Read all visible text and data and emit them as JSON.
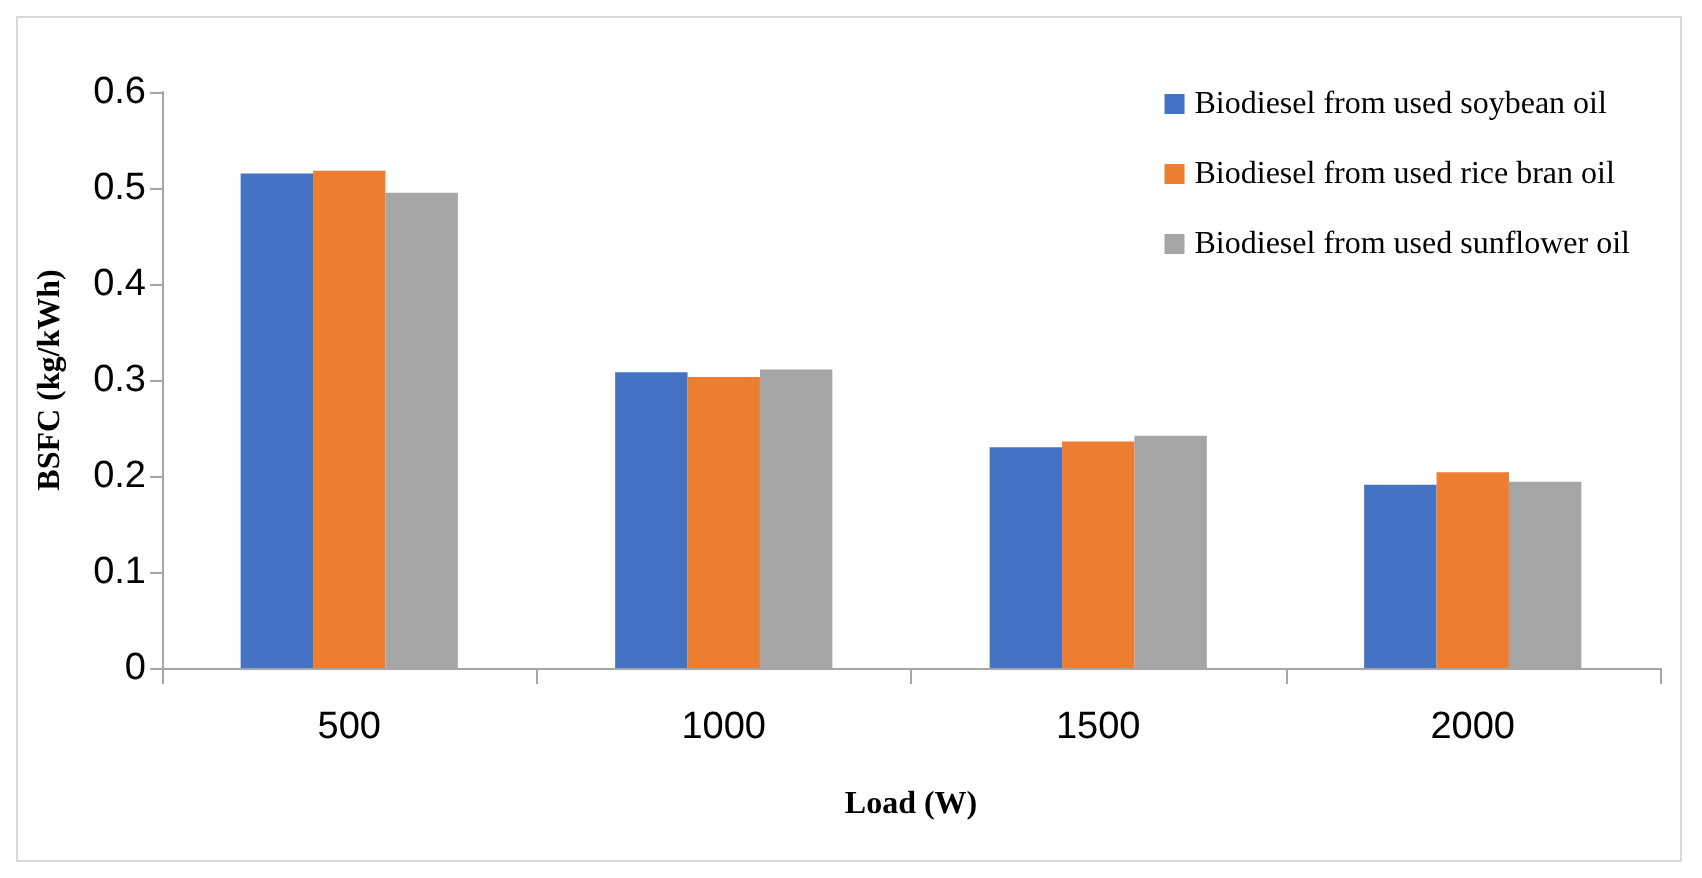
{
  "chart_data": {
    "type": "bar",
    "xlabel": "Load (W)",
    "ylabel": "BSFC (kg/kWh)",
    "categories": [
      "500",
      "1000",
      "1500",
      "2000"
    ],
    "series": [
      {
        "name": "Biodiesel from used soybean oil",
        "color": "#4472c4",
        "values": [
          0.515,
          0.308,
          0.23,
          0.191
        ]
      },
      {
        "name": "Biodiesel from used rice bran oil",
        "color": "#ed7d31",
        "values": [
          0.518,
          0.303,
          0.236,
          0.204
        ]
      },
      {
        "name": "Biodiesel from used sunflower oil",
        "color": "#a5a5a5",
        "values": [
          0.495,
          0.311,
          0.242,
          0.194
        ]
      }
    ],
    "ylim": [
      0,
      0.6
    ],
    "yticks": [
      0,
      0.1,
      0.2,
      0.3,
      0.4,
      0.5,
      0.6
    ],
    "grid": false,
    "legend": "top right"
  }
}
